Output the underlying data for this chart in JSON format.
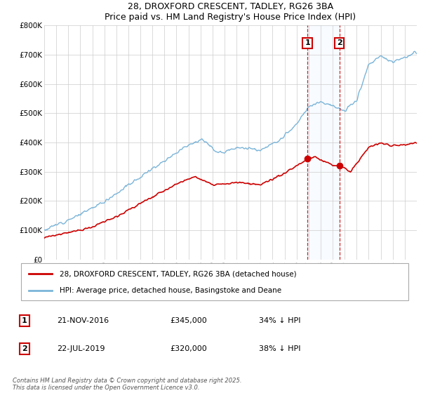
{
  "title": "28, DROXFORD CRESCENT, TADLEY, RG26 3BA",
  "subtitle": "Price paid vs. HM Land Registry's House Price Index (HPI)",
  "legend_line1": "28, DROXFORD CRESCENT, TADLEY, RG26 3BA (detached house)",
  "legend_line2": "HPI: Average price, detached house, Basingstoke and Deane",
  "annotation1_label": "1",
  "annotation1_date": "21-NOV-2016",
  "annotation1_price": "£345,000",
  "annotation1_hpi": "34% ↓ HPI",
  "annotation2_label": "2",
  "annotation2_date": "22-JUL-2019",
  "annotation2_price": "£320,000",
  "annotation2_hpi": "38% ↓ HPI",
  "footer": "Contains HM Land Registry data © Crown copyright and database right 2025.\nThis data is licensed under the Open Government Licence v3.0.",
  "hpi_color": "#7ab4d8",
  "price_color": "#cc0000",
  "span_color": "#ddeeff",
  "vline_color": "#cc0000",
  "ylim": [
    0,
    800000
  ],
  "yticks": [
    0,
    100000,
    200000,
    300000,
    400000,
    500000,
    600000,
    700000,
    800000
  ],
  "ytick_labels": [
    "£0",
    "£100K",
    "£200K",
    "£300K",
    "£400K",
    "£500K",
    "£600K",
    "£700K",
    "£800K"
  ],
  "xmin": 1995,
  "xmax": 2026,
  "sale1_year": 2016.9,
  "sale1_price": 345000,
  "sale2_year": 2019.56,
  "sale2_price": 320000
}
